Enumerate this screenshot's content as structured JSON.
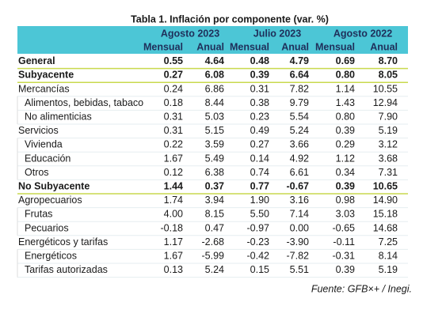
{
  "title": "Tabla 1. Inflación por componente (var. %)",
  "table": {
    "groups": [
      "Agosto 2023",
      "Julio 2023",
      "Agosto 2022"
    ],
    "subheaders": [
      "Mensual",
      "Anual",
      "Mensual",
      "Anual",
      "Mensual",
      "Anual"
    ],
    "rows": [
      {
        "label": "General",
        "level": 0,
        "bold": true,
        "cells": [
          "0.55",
          "4.64",
          "0.48",
          "4.79",
          "0.69",
          "8.70"
        ]
      },
      {
        "label": "Subyacente",
        "level": 0,
        "bold": true,
        "cells": [
          "0.27",
          "6.08",
          "0.39",
          "6.64",
          "0.80",
          "8.05"
        ]
      },
      {
        "label": "Mercancías",
        "level": 0,
        "bold": false,
        "cells": [
          "0.24",
          "6.86",
          "0.31",
          "7.82",
          "1.14",
          "10.55"
        ]
      },
      {
        "label": "Alimentos, bebidas, tabaco",
        "level": 1,
        "bold": false,
        "cells": [
          "0.18",
          "8.44",
          "0.38",
          "9.79",
          "1.43",
          "12.94"
        ]
      },
      {
        "label": "No alimenticias",
        "level": 1,
        "bold": false,
        "cells": [
          "0.31",
          "5.03",
          "0.23",
          "5.54",
          "0.80",
          "7.90"
        ]
      },
      {
        "label": "Servicios",
        "level": 0,
        "bold": false,
        "cells": [
          "0.31",
          "5.15",
          "0.49",
          "5.24",
          "0.39",
          "5.19"
        ]
      },
      {
        "label": "Vivienda",
        "level": 1,
        "bold": false,
        "cells": [
          "0.22",
          "3.59",
          "0.27",
          "3.66",
          "0.29",
          "3.12"
        ]
      },
      {
        "label": "Educación",
        "level": 1,
        "bold": false,
        "cells": [
          "1.67",
          "5.49",
          "0.14",
          "4.92",
          "1.12",
          "3.68"
        ]
      },
      {
        "label": "Otros",
        "level": 1,
        "bold": false,
        "cells": [
          "0.12",
          "6.38",
          "0.74",
          "6.61",
          "0.34",
          "7.31"
        ]
      },
      {
        "label": "No Subyacente",
        "level": 0,
        "bold": true,
        "cells": [
          "1.44",
          "0.37",
          "0.77",
          "-0.67",
          "0.39",
          "10.65"
        ]
      },
      {
        "label": "Agropecuarios",
        "level": 0,
        "bold": false,
        "cells": [
          "1.74",
          "3.94",
          "1.90",
          "3.16",
          "0.98",
          "14.90"
        ]
      },
      {
        "label": "Frutas",
        "level": 1,
        "bold": false,
        "cells": [
          "4.00",
          "8.15",
          "5.50",
          "7.14",
          "3.03",
          "15.18"
        ]
      },
      {
        "label": "Pecuarios",
        "level": 1,
        "bold": false,
        "cells": [
          "-0.18",
          "0.47",
          "-0.97",
          "0.00",
          "-0.65",
          "14.68"
        ]
      },
      {
        "label": "Energéticos y tarifas",
        "level": 0,
        "bold": false,
        "cells": [
          "1.17",
          "-2.68",
          "-0.23",
          "-3.90",
          "-0.11",
          "7.25"
        ]
      },
      {
        "label": "Energéticos",
        "level": 1,
        "bold": false,
        "cells": [
          "1.67",
          "-5.99",
          "-0.42",
          "-7.82",
          "-0.31",
          "8.14"
        ]
      },
      {
        "label": "Tarifas autorizadas",
        "level": 1,
        "bold": false,
        "cells": [
          "0.13",
          "5.24",
          "0.15",
          "5.51",
          "0.39",
          "5.19"
        ]
      }
    ]
  },
  "source": "Fuente: GFB×+ /  Inegi."
}
